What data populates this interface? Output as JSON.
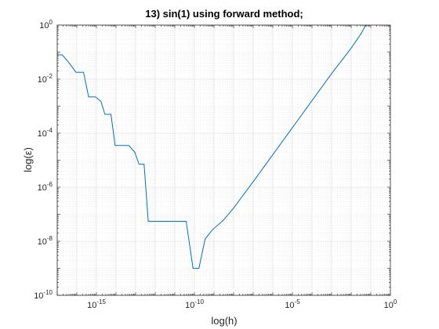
{
  "chart_data": {
    "type": "line",
    "title": "13) sin(1) using forward method;",
    "xlabel": "log(h)",
    "ylabel": "log(ε)",
    "xscale": "log",
    "yscale": "log",
    "xlim": [
      1e-17,
      1
    ],
    "ylim": [
      1e-10,
      1
    ],
    "grid": true,
    "minor_grid": true,
    "x_ticks": [
      {
        "base": "10",
        "exp": "-15",
        "value": 1e-15
      },
      {
        "base": "10",
        "exp": "-10",
        "value": 1e-10
      },
      {
        "base": "10",
        "exp": "-5",
        "value": 1e-05
      },
      {
        "base": "10",
        "exp": "0",
        "value": 1
      }
    ],
    "y_ticks": [
      {
        "base": "10",
        "exp": "-10",
        "value": 1e-10
      },
      {
        "base": "10",
        "exp": "-8",
        "value": 1e-08
      },
      {
        "base": "10",
        "exp": "-6",
        "value": 1e-06
      },
      {
        "base": "10",
        "exp": "-4",
        "value": 0.0001
      },
      {
        "base": "10",
        "exp": "-2",
        "value": 0.01
      },
      {
        "base": "10",
        "exp": "0",
        "value": 1
      }
    ],
    "series": [
      {
        "color": "#0072bd",
        "points": [
          [
            1e-17,
            0.079
          ],
          [
            1.8e-17,
            0.079
          ],
          [
            4e-17,
            0.04
          ],
          [
            9e-17,
            0.018
          ],
          [
            2.2e-16,
            0.018
          ],
          [
            4e-16,
            0.0022
          ],
          [
            9e-16,
            0.0022
          ],
          [
            1.7e-15,
            0.0015
          ],
          [
            2.7e-15,
            0.0005
          ],
          [
            5.5e-15,
            0.0005
          ],
          [
            9e-15,
            3.5e-05
          ],
          [
            2.5e-14,
            3.5e-05
          ],
          [
            4.5e-14,
            3.5e-05
          ],
          [
            9e-14,
            2e-05
          ],
          [
            1.5e-13,
            7.1e-06
          ],
          [
            2.7e-13,
            7.1e-06
          ],
          [
            4.4e-13,
            5.5e-08
          ],
          [
            2.3e-11,
            5.5e-08
          ],
          [
            3.8e-11,
            5.5e-08
          ],
          [
            8.5e-11,
            1e-09
          ],
          [
            1.7e-10,
            1e-09
          ],
          [
            3.5e-10,
            1.2e-08
          ],
          [
            8e-10,
            2.6e-08
          ],
          [
            3e-09,
            6e-08
          ],
          [
            1e-08,
            1.7e-07
          ],
          [
            1e-07,
            1.6e-06
          ],
          [
            1e-06,
            1.6e-05
          ],
          [
            1e-05,
            0.00016
          ],
          [
            0.0001,
            0.0016
          ],
          [
            0.001,
            0.016
          ],
          [
            0.01,
            0.14
          ],
          [
            0.03,
            0.45
          ],
          [
            0.056,
            0.98
          ]
        ]
      }
    ]
  }
}
